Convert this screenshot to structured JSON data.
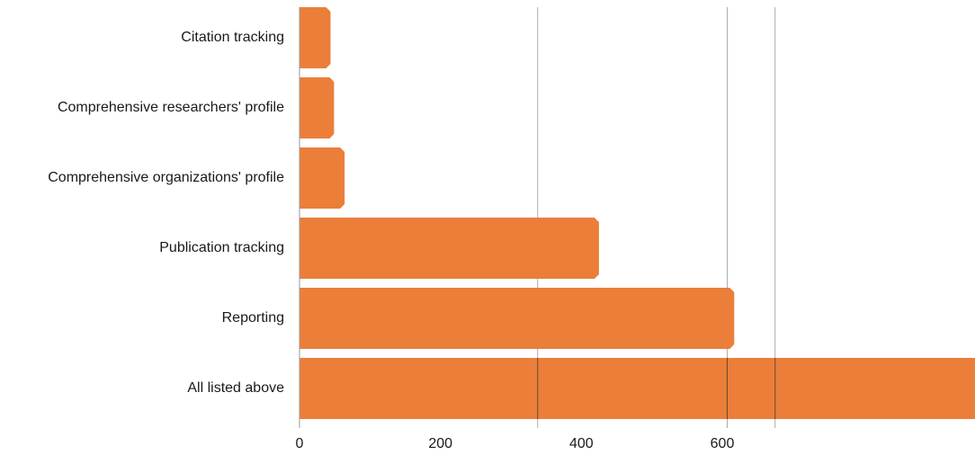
{
  "chart_data": {
    "type": "bar",
    "orientation": "horizontal",
    "categories": [
      "Citation tracking",
      "Comprehensive researchers' profile",
      "Comprehensive organizations' profile",
      "Publication tracking",
      "Reporting",
      "All listed above"
    ],
    "values": [
      44,
      49,
      64,
      425,
      617,
      1000
    ],
    "xticks": [
      0,
      200,
      400,
      600
    ],
    "xlim": [
      0,
      970
    ],
    "grid_lines_at": [
      338,
      607,
      675
    ],
    "bar_color": "#EB7E39",
    "grid_color": "#AAAAAA",
    "grid": true,
    "legend": "none",
    "title": "",
    "xlabel": "",
    "ylabel": ""
  }
}
